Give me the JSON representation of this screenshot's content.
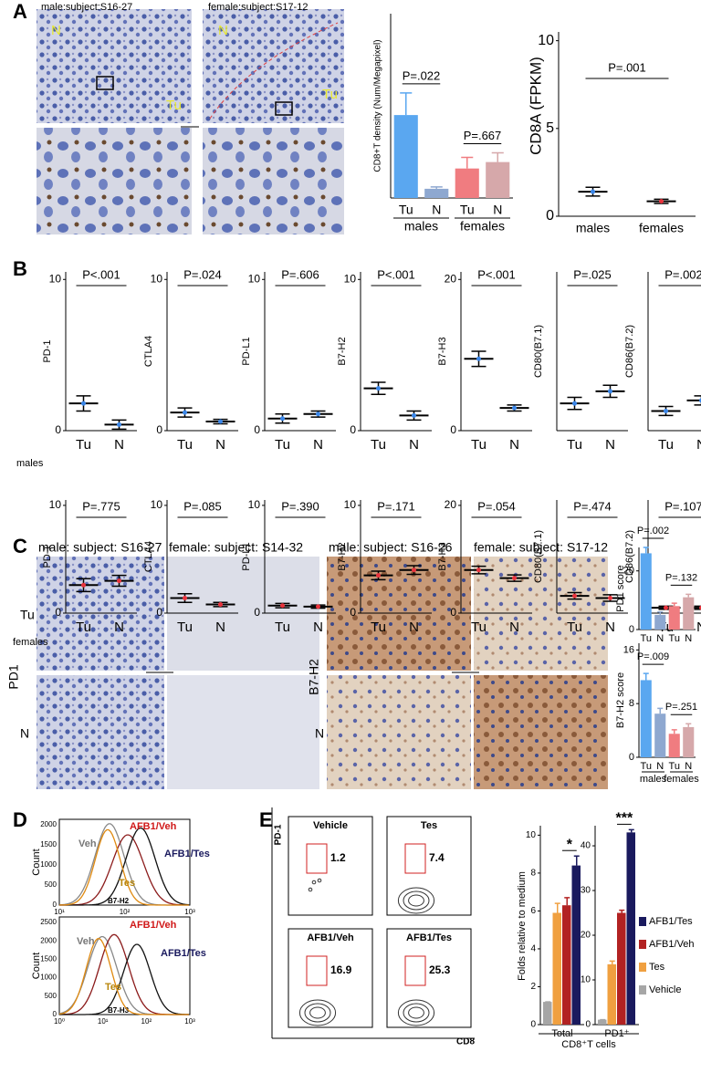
{
  "panel_labels": [
    "A",
    "B",
    "C",
    "D",
    "E"
  ],
  "panel_a": {
    "images": [
      {
        "title": "male:subject:S16-27",
        "labels": [
          "N",
          "Tu"
        ]
      },
      {
        "title": "female:subject:S17-12",
        "labels": [
          "N",
          "Tu"
        ]
      }
    ]
  },
  "panel_b": {
    "row_labels": [
      "males",
      "females"
    ]
  },
  "panel_c": {
    "titles": [
      "male: subject: S16-27",
      "female: subject: S14-32",
      "male: subject: S16-26",
      "female: subject: S17-12"
    ],
    "left_rows": [
      "Tu",
      "N"
    ],
    "left_marker": "PD1",
    "right_marker": "B7-H2",
    "right_rows": [
      "N"
    ]
  },
  "panel_d": [
    {
      "ylabel": "Count",
      "xlabel": "B7-H2",
      "yticks": [
        0,
        500,
        1000,
        1500,
        2000
      ],
      "xticks": [
        "10¹",
        "10²",
        "10³"
      ],
      "labels": [
        "Veh",
        "AFB1/Veh",
        "AFB1/Tes",
        "Tes"
      ]
    },
    {
      "ylabel": "Count",
      "xlabel": "B7-H3",
      "yticks": [
        0,
        500,
        1000,
        1500,
        2000,
        2500
      ],
      "xticks": [
        "10⁰",
        "10¹",
        "10²",
        "10³"
      ],
      "labels": [
        "Veh",
        "AFB1/Veh",
        "AFB1/Tes",
        "Tes"
      ]
    }
  ],
  "panel_e": {
    "ylabel": "PD-1",
    "xlabel": "CD8",
    "plots": [
      {
        "title": "Vehicle",
        "value": 1.2
      },
      {
        "title": "Tes",
        "value": 7.4
      },
      {
        "title": "AFB1/Veh",
        "value": 16.9
      },
      {
        "title": "AFB1/Tes",
        "value": 25.3
      }
    ]
  },
  "chart_data": [
    {
      "type": "bar",
      "ylabel": "CD8+T density (Num/Megapixel)",
      "categories": [
        "Tu",
        "N",
        "Tu",
        "N"
      ],
      "groups": [
        "males",
        "females"
      ],
      "values": [
        45,
        5,
        16,
        19.5
      ],
      "errors": [
        12,
        1,
        6,
        5
      ],
      "colors": [
        "#5aa7f0",
        "#8ea8d0",
        "#f07c80",
        "#d6a8aa"
      ],
      "ylim": [
        0,
        100
      ],
      "annotations": [
        "P=.022",
        "P=.667"
      ]
    },
    {
      "type": "dot",
      "ylabel": "CD8A (FPKM)",
      "categories": [
        "males",
        "females"
      ],
      "values": [
        1.4,
        0.85
      ],
      "errors": [
        0.25,
        0.12
      ],
      "colors": [
        "#3a86e8",
        "#e8323c"
      ],
      "ylim": [
        0,
        10.5
      ],
      "yticks": [
        0,
        5,
        10
      ],
      "annotation": "P=.001"
    },
    {
      "type": "dot",
      "ylabel": "PD-1",
      "categories": [
        "Tu",
        "N"
      ],
      "values": [
        1.8,
        0.4
      ],
      "errors": [
        0.5,
        0.3
      ],
      "color": "#3a86e8",
      "ylim": [
        0,
        10.5
      ],
      "yticks": [
        0,
        10
      ],
      "annotation": "P<.001"
    },
    {
      "type": "dot",
      "ylabel": "CTLA4",
      "categories": [
        "Tu",
        "N"
      ],
      "values": [
        1.2,
        0.6
      ],
      "errors": [
        0.3,
        0.15
      ],
      "color": "#3a86e8",
      "ylim": [
        0,
        10.5
      ],
      "yticks": [
        0,
        10
      ],
      "annotation": "P=.024"
    },
    {
      "type": "dot",
      "ylabel": "PD-L1",
      "categories": [
        "Tu",
        "N"
      ],
      "values": [
        0.8,
        1.1
      ],
      "errors": [
        0.3,
        0.2
      ],
      "color": "#3a86e8",
      "ylim": [
        0,
        10.5
      ],
      "yticks": [
        0,
        10
      ],
      "annotation": "P=.606"
    },
    {
      "type": "dot",
      "ylabel": "B7-H2",
      "categories": [
        "Tu",
        "N"
      ],
      "values": [
        2.8,
        1.0
      ],
      "errors": [
        0.4,
        0.3
      ],
      "color": "#3a86e8",
      "ylim": [
        0,
        10.5
      ],
      "yticks": [
        0,
        10
      ],
      "annotation": "P<.001"
    },
    {
      "type": "dot",
      "ylabel": "B7-H3",
      "categories": [
        "Tu",
        "N"
      ],
      "values": [
        9.5,
        3.0
      ],
      "errors": [
        1.0,
        0.4
      ],
      "color": "#3a86e8",
      "ylim": [
        0,
        21
      ],
      "yticks": [
        0,
        20
      ],
      "annotation": "P<.001"
    },
    {
      "type": "dot",
      "ylabel": "CD80(B7.1)",
      "categories": [
        "Tu",
        "N"
      ],
      "values": [
        1.8,
        2.6
      ],
      "errors": [
        0.4,
        0.4
      ],
      "color": "#3a86e8",
      "ylim": [
        0,
        10.5
      ],
      "annotation": "P=.025"
    },
    {
      "type": "dot",
      "ylabel": "CD86(B7.2)",
      "categories": [
        "Tu",
        "N"
      ],
      "values": [
        1.3,
        2.0
      ],
      "errors": [
        0.3,
        0.3
      ],
      "color": "#3a86e8",
      "ylim": [
        0,
        10.5
      ],
      "annotation": "P=.002"
    },
    {
      "type": "dot",
      "ylabel": "PD-1",
      "categories": [
        "Tu",
        "N"
      ],
      "values": [
        2.6,
        3.0
      ],
      "errors": [
        0.6,
        0.5
      ],
      "color": "#e8323c",
      "ylim": [
        0,
        10.5
      ],
      "yticks": [
        0,
        10
      ],
      "annotation": "P=.775"
    },
    {
      "type": "dot",
      "ylabel": "CTLA4",
      "categories": [
        "Tu",
        "N"
      ],
      "values": [
        1.4,
        0.8
      ],
      "errors": [
        0.4,
        0.2
      ],
      "color": "#e8323c",
      "ylim": [
        0,
        10.5
      ],
      "yticks": [
        0,
        10
      ],
      "annotation": "P=.085"
    },
    {
      "type": "dot",
      "ylabel": "PD-L1",
      "categories": [
        "Tu",
        "N"
      ],
      "values": [
        0.7,
        0.6
      ],
      "errors": [
        0.2,
        0.15
      ],
      "color": "#e8323c",
      "ylim": [
        0,
        10.5
      ],
      "yticks": [
        0,
        10
      ],
      "annotation": "P=.390"
    },
    {
      "type": "dot",
      "ylabel": "B7-H2",
      "categories": [
        "Tu",
        "N"
      ],
      "values": [
        3.5,
        4.0
      ],
      "errors": [
        0.4,
        0.4
      ],
      "color": "#e8323c",
      "ylim": [
        0,
        10.5
      ],
      "yticks": [
        0,
        10
      ],
      "annotation": "P=.171"
    },
    {
      "type": "dot",
      "ylabel": "B7-H3",
      "categories": [
        "Tu",
        "N"
      ],
      "values": [
        8.0,
        6.5
      ],
      "errors": [
        0.7,
        0.6
      ],
      "color": "#e8323c",
      "ylim": [
        0,
        21
      ],
      "yticks": [
        0,
        20
      ],
      "annotation": "P=.054"
    },
    {
      "type": "dot",
      "ylabel": "CD80(B7.1)",
      "categories": [
        "Tu",
        "N"
      ],
      "values": [
        1.6,
        1.4
      ],
      "errors": [
        0.3,
        0.3
      ],
      "color": "#e8323c",
      "ylim": [
        0,
        10.5
      ],
      "annotation": "P=.474"
    },
    {
      "type": "dot",
      "ylabel": "CD86(B7.2)",
      "categories": [
        "Tu",
        "N"
      ],
      "values": [
        0.5,
        0.5
      ],
      "errors": [
        0.15,
        0.15
      ],
      "color": "#e8323c",
      "ylim": [
        0,
        10.5
      ],
      "annotation": "P=.107"
    },
    {
      "type": "bar",
      "ylabel": "PD1 score",
      "categories": [
        "Tu",
        "N",
        "Tu",
        "N"
      ],
      "values": [
        26,
        5,
        8,
        11
      ],
      "errors": [
        2,
        1,
        1,
        1
      ],
      "colors": [
        "#5aa7f0",
        "#8ea8d0",
        "#f07c80",
        "#d6a8aa"
      ],
      "ylim": [
        0,
        28
      ],
      "yticks": [
        0,
        20
      ],
      "annotations": [
        "P=.002",
        "P=.132"
      ]
    },
    {
      "type": "bar",
      "ylabel": "B7-H2 score",
      "categories": [
        "Tu",
        "N",
        "Tu",
        "N"
      ],
      "groups": [
        "males",
        "females"
      ],
      "values": [
        11.5,
        6.5,
        3.5,
        4.5
      ],
      "errors": [
        1,
        0.8,
        0.6,
        0.5
      ],
      "colors": [
        "#5aa7f0",
        "#8ea8d0",
        "#f07c80",
        "#d6a8aa"
      ],
      "ylim": [
        0,
        17
      ],
      "yticks": [
        0,
        8,
        16
      ],
      "annotations": [
        "P=.009",
        "P=.251"
      ]
    },
    {
      "type": "bargroup",
      "ylabel": "Folds relative to medium",
      "xlabel": "CD8⁺T cells",
      "categories": [
        "Total",
        "PD1⁺"
      ],
      "annotations": [
        "*",
        "***"
      ],
      "series": [
        {
          "name": "Vehicle",
          "color": "#a6a6a6",
          "values": [
            1.2,
            1.1
          ],
          "errors": [
            0,
            0
          ]
        },
        {
          "name": "Tes",
          "color": "#f0a040",
          "values": [
            5.9,
            13.5
          ],
          "errors": [
            0.5,
            0.7
          ]
        },
        {
          "name": "AFB1/Veh",
          "color": "#b22222",
          "values": [
            6.3,
            25
          ],
          "errors": [
            0.4,
            0.6
          ]
        },
        {
          "name": "AFB1/Tes",
          "color": "#1a1a5e",
          "values": [
            8.4,
            43
          ],
          "errors": [
            0.5,
            0.6
          ]
        }
      ],
      "ylim": [
        0,
        10.5
      ],
      "yticks": [
        0,
        2,
        4,
        6,
        8,
        10
      ],
      "y2lim": [
        0,
        44.5
      ],
      "y2ticks": [
        0,
        10,
        20,
        30,
        40
      ]
    }
  ]
}
